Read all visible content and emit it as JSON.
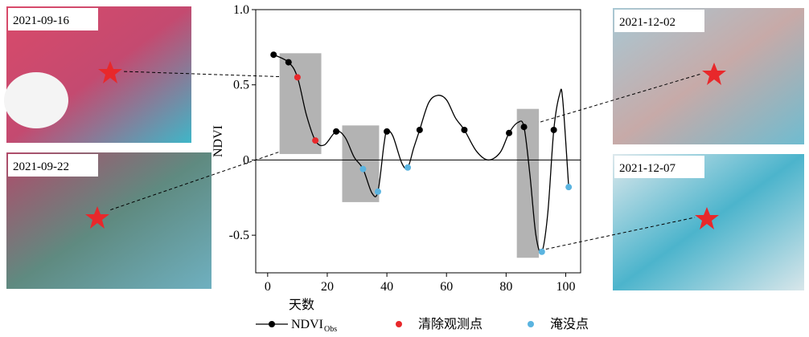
{
  "chart_data": {
    "type": "line",
    "x_label": "天数",
    "y_label": "NDVI",
    "xlim": [
      -4,
      105
    ],
    "ylim": [
      -0.75,
      1.0
    ],
    "xticks": [
      0,
      20,
      40,
      60,
      80,
      100
    ],
    "yticks": [
      -0.5,
      0,
      0.5,
      {
        "value": 1.0,
        "label": "1.0"
      }
    ],
    "zero_line": true,
    "curve": {
      "color": "#000",
      "x": [
        2,
        7,
        10,
        13,
        16,
        19,
        23,
        26,
        29,
        32,
        35,
        37,
        39,
        40,
        42,
        45,
        47,
        49,
        51,
        54,
        57,
        60,
        63,
        66,
        70,
        74,
        78,
        81,
        84,
        86,
        88,
        90,
        92,
        94,
        96,
        98,
        99,
        101
      ],
      "values": [
        0.7,
        0.65,
        0.55,
        0.3,
        0.13,
        0.1,
        0.19,
        0.15,
        0.02,
        -0.06,
        -0.22,
        -0.21,
        0.1,
        0.19,
        0.16,
        -0.02,
        -0.05,
        0.08,
        0.2,
        0.38,
        0.43,
        0.4,
        0.28,
        0.2,
        0.06,
        0.0,
        0.05,
        0.18,
        0.25,
        0.22,
        -0.1,
        -0.5,
        -0.61,
        -0.35,
        0.2,
        0.44,
        0.4,
        -0.18
      ]
    },
    "series": [
      {
        "name": "NDVI",
        "name_sub": "Obs",
        "color": "#000",
        "x": [
          2,
          7,
          23,
          40,
          51,
          66,
          81,
          86,
          96
        ],
        "values": [
          0.7,
          0.65,
          0.19,
          0.19,
          0.2,
          0.2,
          0.18,
          0.22,
          0.2
        ]
      },
      {
        "name": "清除观测点",
        "color": "#e8282b",
        "x": [
          10,
          16
        ],
        "values": [
          0.55,
          0.13
        ]
      },
      {
        "name": "淹没点",
        "color": "#5ab4e0",
        "x": [
          32,
          37,
          47,
          92,
          101
        ],
        "values": [
          -0.06,
          -0.21,
          -0.05,
          -0.61,
          -0.18
        ]
      }
    ],
    "highlight_boxes": [
      {
        "x": [
          4,
          18
        ],
        "y": [
          0.04,
          0.71
        ]
      },
      {
        "x": [
          25,
          37.4
        ],
        "y": [
          -0.28,
          0.23
        ]
      },
      {
        "x": [
          83.6,
          91
        ],
        "y": [
          -0.65,
          0.34
        ]
      }
    ],
    "highlight_color": "#b3b3b3"
  },
  "panels": [
    {
      "date": "2021-09-16"
    },
    {
      "date": "2021-09-22"
    },
    {
      "date": "2021-12-02"
    },
    {
      "date": "2021-12-07"
    }
  ]
}
